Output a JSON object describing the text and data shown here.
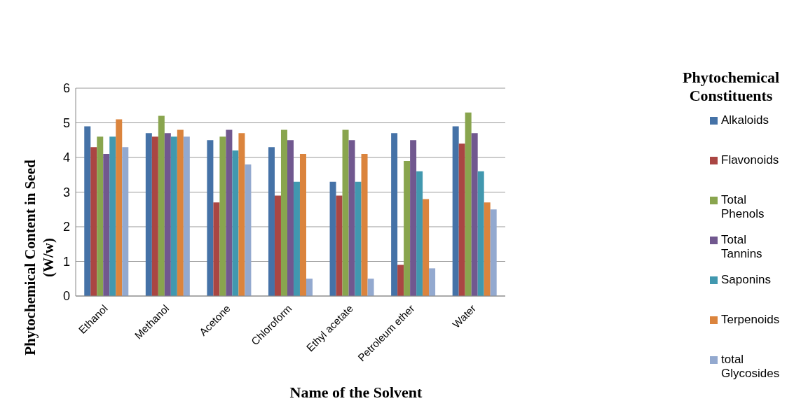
{
  "chart_data": {
    "type": "bar",
    "xlabel": "Name of the Solvent",
    "ylabel": "Phytochemical  Content in Seed (W/w)",
    "legend_title": "Phytochemical Constituents",
    "categories": [
      "Ethanol",
      "Methanol",
      "Acetone",
      "Chloroform",
      "Ethyl acetate",
      "Petroleum ether",
      "Water"
    ],
    "series": [
      {
        "name": "Alkaloids",
        "color": "#4572a7",
        "values": [
          4.9,
          4.7,
          4.5,
          4.3,
          3.3,
          4.7,
          4.9
        ]
      },
      {
        "name": "Flavonoids",
        "color": "#aa4643",
        "values": [
          4.3,
          4.6,
          2.7,
          2.9,
          2.9,
          0.9,
          4.4
        ]
      },
      {
        "name": "Total Phenols",
        "color": "#89a54e",
        "values": [
          4.6,
          5.2,
          4.6,
          4.8,
          4.8,
          3.9,
          5.3
        ]
      },
      {
        "name": "Total Tannins",
        "color": "#71588f",
        "values": [
          4.1,
          4.7,
          4.8,
          4.5,
          4.5,
          4.5,
          4.7
        ]
      },
      {
        "name": "Saponins",
        "color": "#4198af",
        "values": [
          4.6,
          4.6,
          4.2,
          3.3,
          3.3,
          3.6,
          3.6
        ]
      },
      {
        "name": "Terpenoids",
        "color": "#db843d",
        "values": [
          5.1,
          4.8,
          4.7,
          4.1,
          4.1,
          2.8,
          2.7
        ]
      },
      {
        "name": "total Glycosides",
        "color": "#93a9cf",
        "values": [
          4.3,
          4.6,
          3.8,
          0.5,
          0.5,
          0.8,
          2.5
        ]
      }
    ],
    "ylim": [
      0,
      6
    ],
    "yticks": [
      0,
      1,
      2,
      3,
      4,
      5,
      6
    ],
    "grid": "y",
    "legend": "right"
  }
}
